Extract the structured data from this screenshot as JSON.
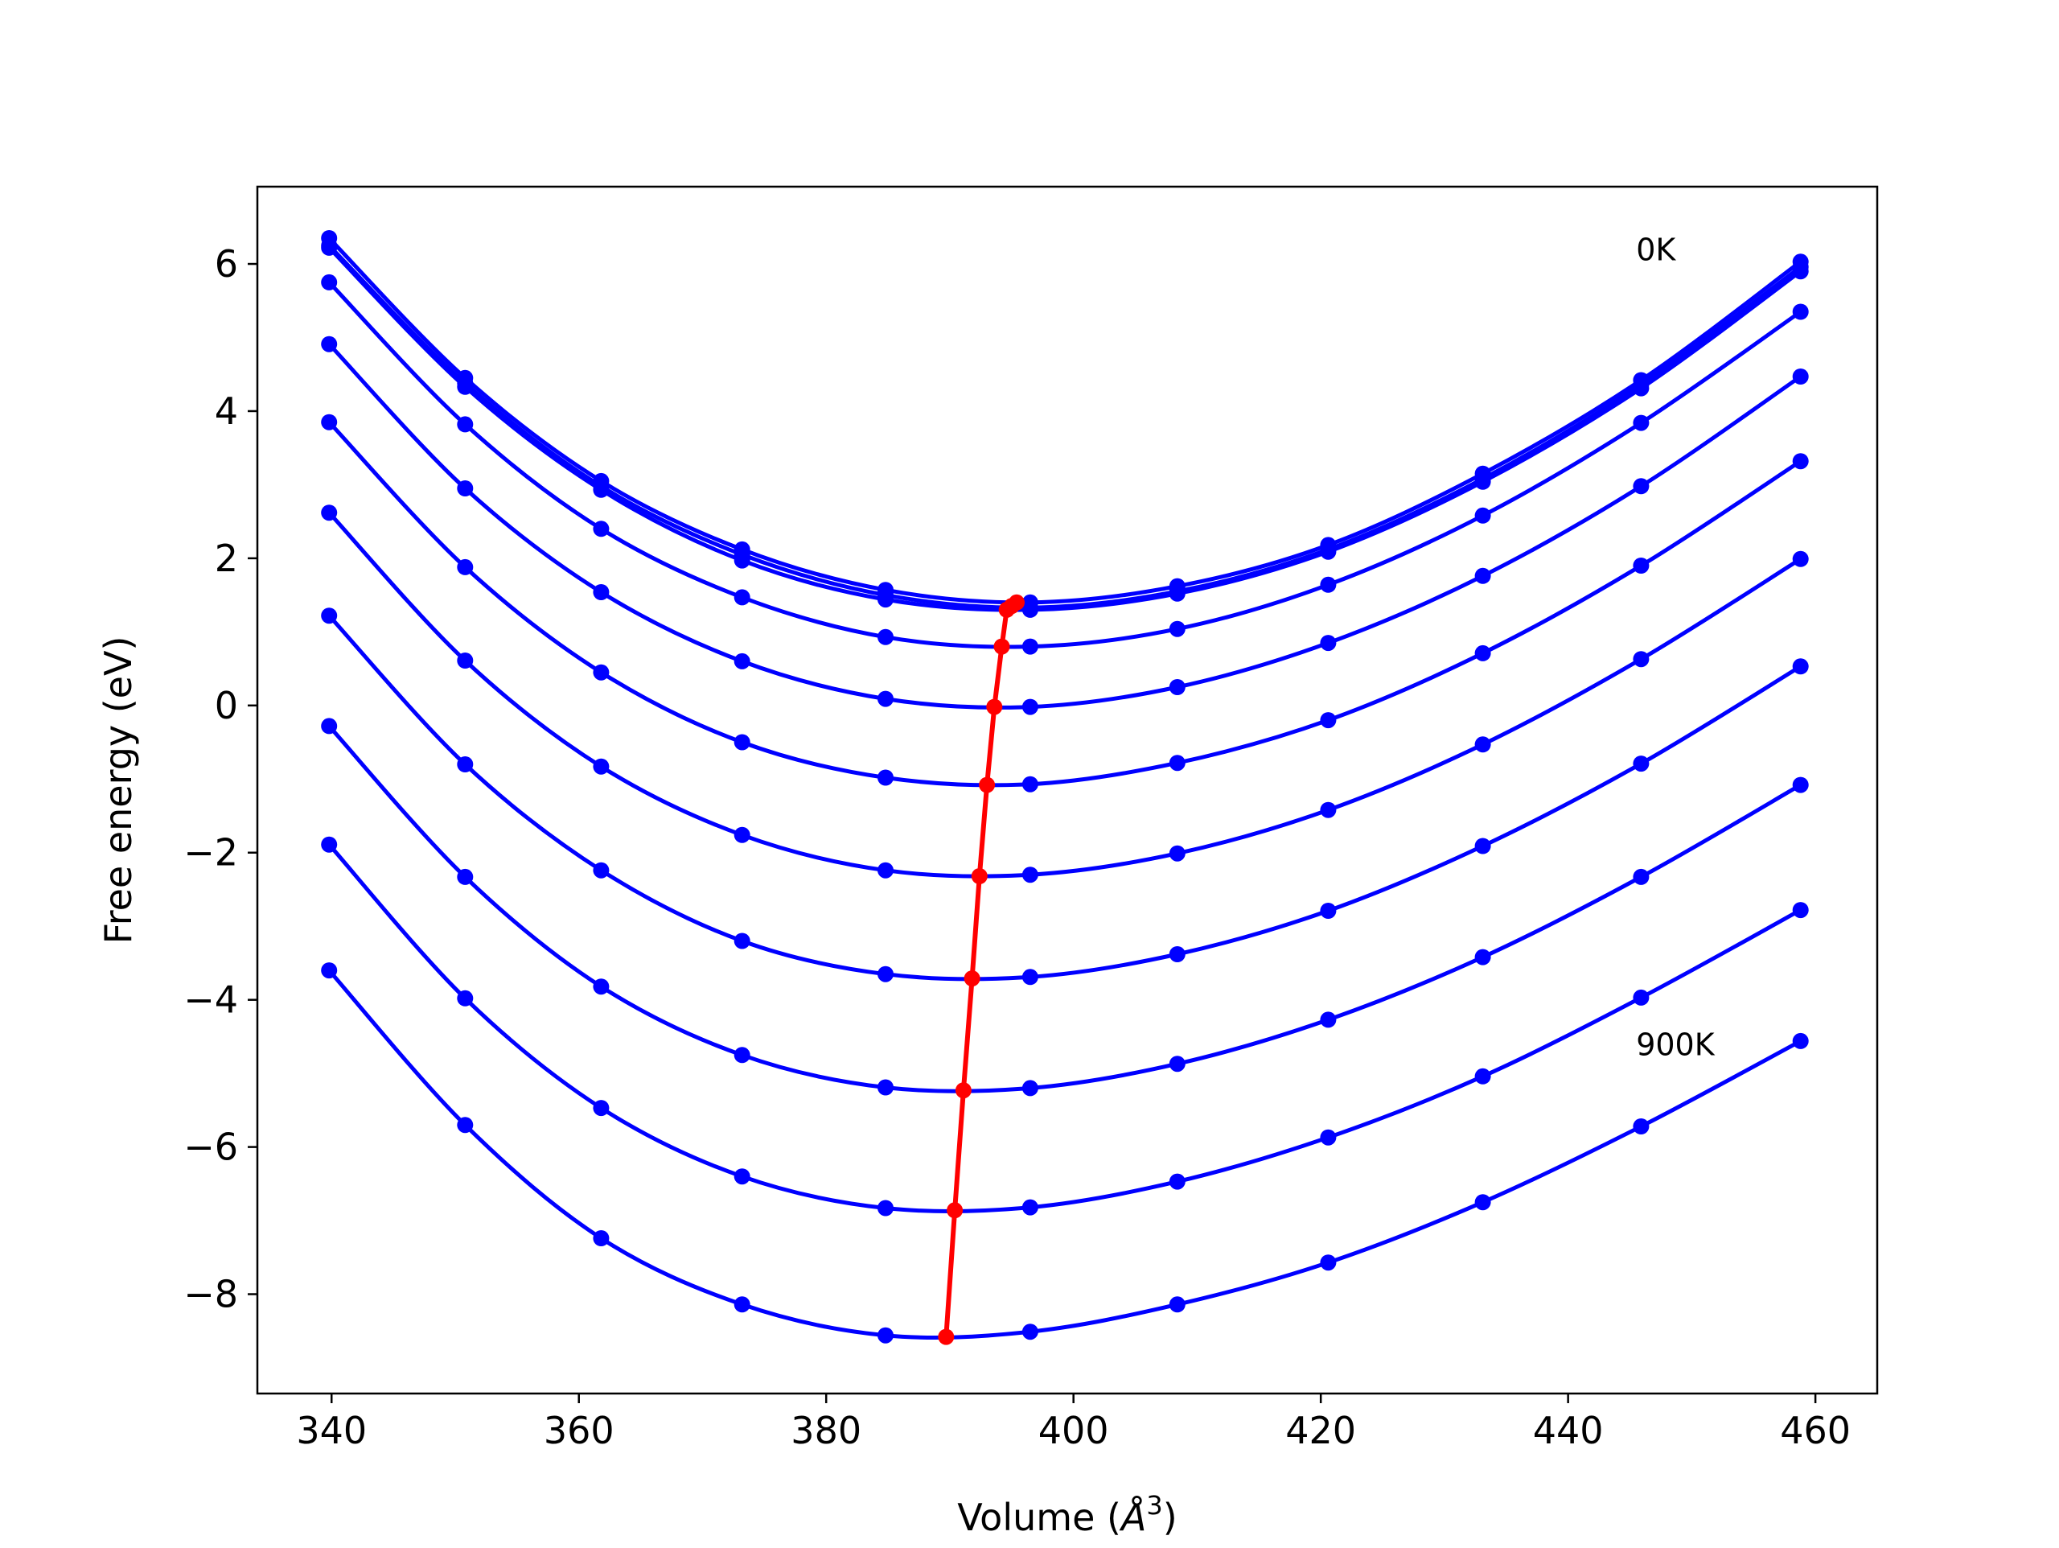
{
  "chart_data": {
    "type": "line",
    "xlabel": "Volume (Å³)",
    "xlabel_main": "Volume (",
    "xlabel_unit": "Å",
    "xlabel_exp": "3",
    "xlabel_close": ")",
    "ylabel": "Free energy (eV)",
    "xlim": [
      334,
      465
    ],
    "ylim": [
      -9.35,
      7.05
    ],
    "xticks": [
      340,
      360,
      380,
      400,
      420,
      440,
      460
    ],
    "yticks": [
      -8,
      -6,
      -4,
      -2,
      0,
      2,
      4,
      6
    ],
    "grid": false,
    "annotations": [
      {
        "text": "0K",
        "x": 445.5,
        "y": 6.2
      },
      {
        "text": "900K",
        "x": 445.5,
        "y": -4.6
      }
    ],
    "x": [
      339.8,
      350.8,
      361.8,
      373.2,
      384.8,
      396.5,
      408.4,
      420.6,
      433.1,
      445.9,
      458.8
    ],
    "series": [
      {
        "values": [
          6.35,
          4.45,
          3.05,
          2.12,
          1.57,
          1.4,
          1.62,
          2.18,
          3.15,
          4.42,
          6.03
        ]
      },
      {
        "values": [
          6.25,
          4.38,
          2.98,
          2.05,
          1.5,
          1.33,
          1.55,
          2.12,
          3.08,
          4.36,
          5.96
        ]
      },
      {
        "values": [
          6.22,
          4.33,
          2.93,
          1.97,
          1.44,
          1.3,
          1.52,
          2.09,
          3.04,
          4.31,
          5.9
        ]
      },
      {
        "values": [
          5.75,
          3.82,
          2.4,
          1.47,
          0.93,
          0.8,
          1.04,
          1.64,
          2.58,
          3.84,
          5.35
        ]
      },
      {
        "values": [
          4.91,
          2.95,
          1.54,
          0.6,
          0.09,
          -0.02,
          0.25,
          0.85,
          1.76,
          2.98,
          4.47
        ]
      },
      {
        "values": [
          3.85,
          1.88,
          0.45,
          -0.5,
          -0.98,
          -1.07,
          -0.78,
          -0.2,
          0.71,
          1.9,
          3.32
        ]
      },
      {
        "values": [
          2.62,
          0.61,
          -0.83,
          -1.76,
          -2.24,
          -2.3,
          -2.01,
          -1.42,
          -0.53,
          0.63,
          1.99
        ]
      },
      {
        "values": [
          1.22,
          -0.8,
          -2.24,
          -3.2,
          -3.65,
          -3.69,
          -3.38,
          -2.79,
          -1.91,
          -0.79,
          0.53
        ]
      },
      {
        "values": [
          -0.28,
          -2.33,
          -3.82,
          -4.75,
          -5.19,
          -5.2,
          -4.87,
          -4.27,
          -3.42,
          -2.33,
          -1.08
        ]
      },
      {
        "values": [
          -1.89,
          -3.98,
          -5.47,
          -6.4,
          -6.83,
          -6.82,
          -6.47,
          -5.87,
          -5.04,
          -3.97,
          -2.78
        ]
      },
      {
        "values": [
          -3.6,
          -5.7,
          -7.24,
          -8.14,
          -8.56,
          -8.51,
          -8.14,
          -7.57,
          -6.75,
          -5.72,
          -4.56
        ]
      }
    ],
    "minima": {
      "x": [
        395.4,
        395.0,
        394.6,
        394.2,
        393.6,
        393.0,
        392.4,
        391.8,
        391.1,
        390.4,
        389.7
      ],
      "y": [
        1.4,
        1.35,
        1.3,
        0.8,
        -0.02,
        -1.08,
        -2.32,
        -3.71,
        -5.23,
        -6.86,
        -8.58
      ]
    },
    "colors": {
      "curve": "#0000ff",
      "minima": "#ff0000",
      "axes": "#000000"
    }
  }
}
